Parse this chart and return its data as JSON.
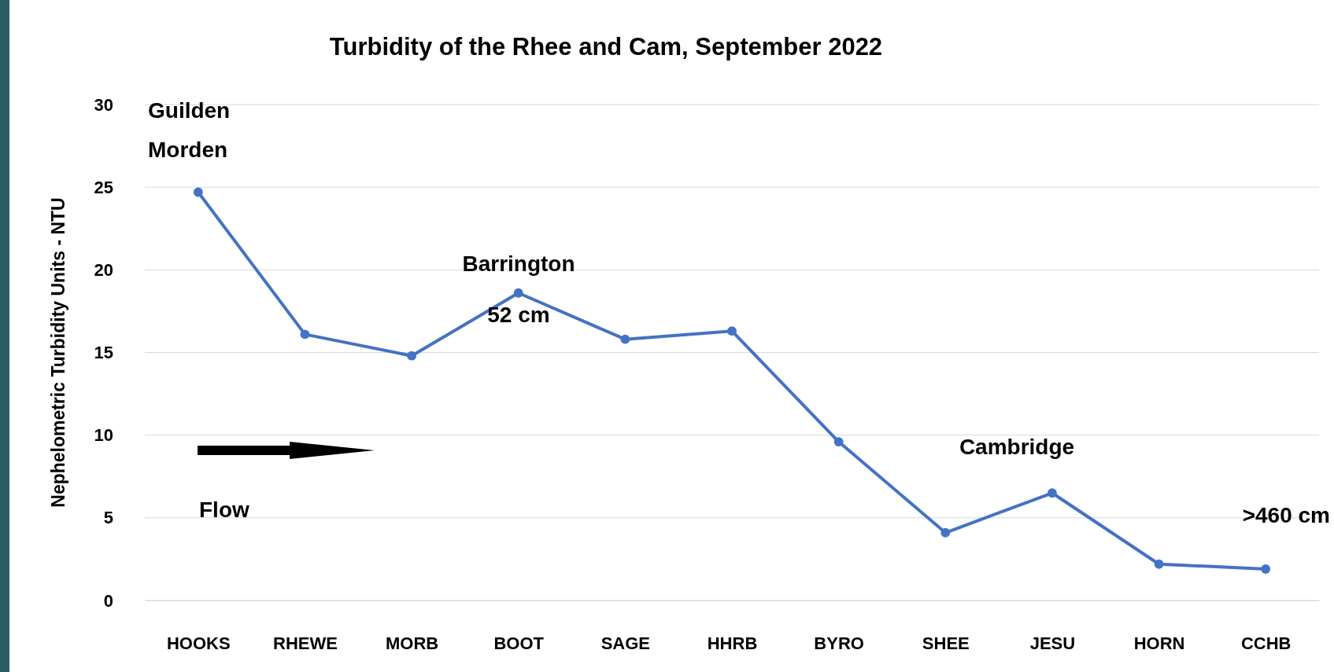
{
  "chart_data": {
    "type": "line",
    "title": "Turbidity of the Rhee and Cam, September 2022",
    "ylabel": "Nephelometric Turbidity Units - NTU",
    "categories": [
      "HOOKS",
      "RHEWE",
      "MORB",
      "BOOT",
      "SAGE",
      "HHRB",
      "BYRO",
      "SHEE",
      "JESU",
      "HORN",
      "CCHB"
    ],
    "series": [
      {
        "color": "#4472c4",
        "values": [
          24.7,
          16.1,
          14.8,
          18.6,
          15.8,
          16.3,
          9.6,
          4.1,
          6.5,
          2.2,
          1.9
        ]
      }
    ],
    "ylim": [
      0,
      30
    ],
    "yticks": [
      0,
      5,
      10,
      15,
      20,
      25,
      30
    ],
    "grid": "y",
    "marker": "circle",
    "line_style": "solid",
    "annotations": [
      "Guilden Morden",
      "Barrington",
      "52 cm",
      "Cambridge",
      ">460 cm",
      "Flow"
    ]
  }
}
